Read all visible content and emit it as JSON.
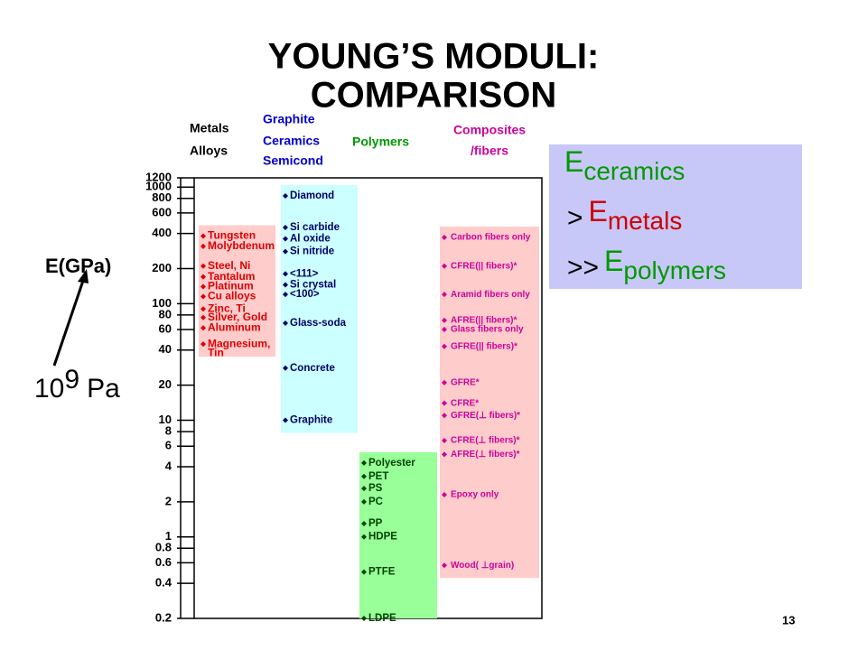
{
  "chart_data": {
    "type": "strip",
    "title": [
      "YOUNG’S MODULI:",
      "COMPARISON"
    ],
    "y_label": "E(GPa)",
    "log_y": true,
    "ylim": [
      0.2,
      1200
    ],
    "yticks": [
      0.2,
      0.4,
      0.6,
      0.8,
      1,
      2,
      4,
      6,
      8,
      10,
      20,
      40,
      60,
      80,
      100,
      200,
      400,
      600,
      800,
      1000,
      1200
    ],
    "annotation": {
      "base": "10",
      "exponent": "9",
      "unit": "Pa"
    },
    "series": [
      {
        "name": [
          "Metals",
          "Alloys"
        ],
        "color": "#000000",
        "label_color": "#dd0000",
        "band_color": "#ffcccc",
        "labels": [
          [
            "Tungsten"
          ],
          [
            "Molybdenum"
          ],
          [
            "Steel, Ni"
          ],
          [
            "Tantalum"
          ],
          [
            "Platinum"
          ],
          [
            "Cu alloys"
          ],
          [
            "Zinc, Ti"
          ],
          [
            "Silver, Gold"
          ],
          [
            "Aluminum"
          ],
          [
            "Magnesium,",
            "Tin"
          ]
        ],
        "values": [
          380,
          310,
          210,
          170,
          140,
          115,
          90,
          76,
          62,
          45
        ]
      },
      {
        "name": [
          "Graphite",
          "Ceramics",
          "Semicond"
        ],
        "color": "#0000cc",
        "label_color": "#000066",
        "band_color": "#ccffff",
        "labels": [
          [
            "Diamond"
          ],
          [
            "Si carbide"
          ],
          [
            "Al oxide"
          ],
          [
            "Si nitride"
          ],
          [
            "<111>"
          ],
          [
            "Si crystal"
          ],
          [
            "<100>"
          ],
          [
            "Glass-soda"
          ],
          [
            "Concrete"
          ],
          [
            "Graphite"
          ]
        ],
        "values": [
          840,
          450,
          360,
          280,
          180,
          145,
          120,
          68,
          28,
          10
        ]
      },
      {
        "name": [
          "Polymers"
        ],
        "color": "#009900",
        "label_color": "#004400",
        "band_color": "#99ff99",
        "labels": [
          [
            "Polyester"
          ],
          [
            "PET"
          ],
          [
            "PS"
          ],
          [
            "PC"
          ],
          [
            "PP"
          ],
          [
            "HDPE"
          ],
          [
            "PTFE"
          ],
          [
            "LDPE"
          ]
        ],
        "values": [
          4.3,
          3.3,
          2.6,
          2.0,
          1.3,
          1.0,
          0.5,
          0.2
        ]
      },
      {
        "name": [
          "Composites",
          "/fibers"
        ],
        "color": "#cc0099",
        "label_color": "#cc0099",
        "band_color": "#ffcccc",
        "labels": [
          [
            "Carbon fibers only"
          ],
          [
            "CFRE(|| fibers)*"
          ],
          [
            "Aramid fibers only"
          ],
          [
            "AFRE(|| fibers)*"
          ],
          [
            "Glass fibers only"
          ],
          [
            "GFRE(|| fibers)*"
          ],
          [
            "GFRE*"
          ],
          [
            "CFRE*"
          ],
          [
            "GFRE(⊥ fibers)*"
          ],
          [
            "CFRE(⊥ fibers)*"
          ],
          [
            "AFRE(⊥ fibers)*"
          ],
          [
            "Epoxy only"
          ],
          [
            "Wood( ⊥grain)"
          ]
        ],
        "values": [
          370,
          210,
          120,
          72,
          60,
          43,
          21,
          14,
          11,
          6.7,
          5.1,
          2.3,
          0.57
        ]
      }
    ],
    "comparison": [
      {
        "relation": null,
        "symbol": "E",
        "subscript": "ceramics",
        "color": "#009900"
      },
      {
        "relation": ">",
        "symbol": "E",
        "subscript": "metals",
        "color": "#cc0000"
      },
      {
        "relation": ">>",
        "symbol": "E",
        "subscript": "polymers",
        "color": "#009900"
      }
    ],
    "page_number": "13"
  }
}
